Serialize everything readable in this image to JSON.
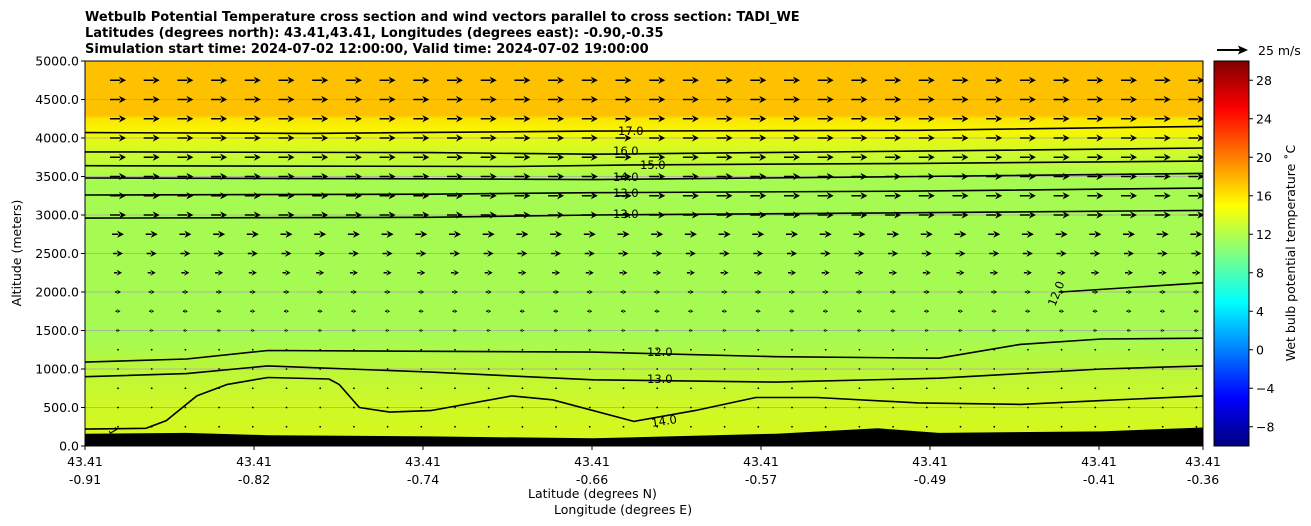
{
  "chart_data": {
    "type": "contour",
    "title": [
      "Wetbulb Potential Temperature cross section and wind vectors parallel to cross section: TADI_WE",
      "Latitudes (degrees north): 43.41,43.41, Longitudes (degrees east): -0.90,-0.35",
      "Simulation start time: 2024-07-02 12:00:00, Valid time: 2024-07-02 19:00:00"
    ],
    "xlabel_lat": "Latitude (degrees N)",
    "xlabel_lon": "Longitude (degrees E)",
    "ylabel": "Altitude (meters)",
    "ylim": [
      0,
      5000
    ],
    "yticks": [
      "0.0",
      "500.0",
      "1000.0",
      "1500.0",
      "2000.0",
      "2500.0",
      "3000.0",
      "3500.0",
      "4000.0",
      "4500.0",
      "5000.0"
    ],
    "xticks": [
      {
        "lat": "43.41",
        "lon": "-0.91"
      },
      {
        "lat": "43.41",
        "lon": "-0.82"
      },
      {
        "lat": "43.41",
        "lon": "-0.74"
      },
      {
        "lat": "43.41",
        "lon": "-0.66"
      },
      {
        "lat": "43.41",
        "lon": "-0.57"
      },
      {
        "lat": "43.41",
        "lon": "-0.49"
      },
      {
        "lat": "43.41",
        "lon": "-0.41"
      },
      {
        "lat": "43.41",
        "lon": "-0.36"
      }
    ],
    "colorbar": {
      "label": "Wet bulb potential temperature ˚C",
      "range": [
        -10,
        30
      ],
      "ticks": [
        "−8",
        "−4",
        "0",
        "4",
        "8",
        "12",
        "16",
        "20",
        "24",
        "28"
      ]
    },
    "quiver_key": "25 m/s",
    "contour_labels": [
      "17.0",
      "16.0",
      "15.0",
      "14.0",
      "13.0",
      "13.0",
      "12.0",
      "12.0",
      "13.0",
      "14.0",
      "1"
    ],
    "terrain_heights_m": [
      [
        -0.91,
        160
      ],
      [
        -0.86,
        170
      ],
      [
        -0.82,
        140
      ],
      [
        -0.74,
        125
      ],
      [
        -0.66,
        100
      ],
      [
        -0.57,
        160
      ],
      [
        -0.52,
        230
      ],
      [
        -0.49,
        170
      ],
      [
        -0.41,
        190
      ],
      [
        -0.36,
        240
      ]
    ],
    "contours": [
      {
        "level": 17.0,
        "points": [
          [
            -0.91,
            4070
          ],
          [
            -0.8,
            4060
          ],
          [
            -0.66,
            4090
          ],
          [
            -0.5,
            4100
          ],
          [
            -0.36,
            4150
          ]
        ]
      },
      {
        "level": 16.0,
        "points": [
          [
            -0.91,
            3820
          ],
          [
            -0.74,
            3810
          ],
          [
            -0.66,
            3790
          ],
          [
            -0.5,
            3830
          ],
          [
            -0.36,
            3870
          ]
        ]
      },
      {
        "level": 15.0,
        "points": [
          [
            -0.91,
            3640
          ],
          [
            -0.7,
            3630
          ],
          [
            -0.64,
            3650
          ],
          [
            -0.5,
            3670
          ],
          [
            -0.36,
            3700
          ]
        ]
      },
      {
        "level": 14.0,
        "points": [
          [
            -0.91,
            3480
          ],
          [
            -0.74,
            3470
          ],
          [
            -0.66,
            3460
          ],
          [
            -0.5,
            3500
          ],
          [
            -0.36,
            3540
          ]
        ]
      },
      {
        "level": 13.0,
        "points": [
          [
            -0.91,
            3260
          ],
          [
            -0.74,
            3270
          ],
          [
            -0.66,
            3290
          ],
          [
            -0.5,
            3310
          ],
          [
            -0.36,
            3350
          ]
        ]
      },
      {
        "level": 12.0,
        "points": [
          [
            -0.91,
            2960
          ],
          [
            -0.74,
            2970
          ],
          [
            -0.66,
            3000
          ],
          [
            -0.5,
            3030
          ],
          [
            -0.36,
            3060
          ]
        ]
      },
      {
        "level": 12.0,
        "points": [
          [
            -0.91,
            1090
          ],
          [
            -0.86,
            1130
          ],
          [
            -0.82,
            1240
          ],
          [
            -0.74,
            1230
          ],
          [
            -0.66,
            1220
          ],
          [
            -0.57,
            1160
          ],
          [
            -0.49,
            1140
          ],
          [
            -0.45,
            1320
          ],
          [
            -0.41,
            1390
          ],
          [
            -0.36,
            1400
          ]
        ]
      },
      {
        "level": 13.0,
        "points": [
          [
            -0.91,
            900
          ],
          [
            -0.86,
            940
          ],
          [
            -0.82,
            1040
          ],
          [
            -0.74,
            960
          ],
          [
            -0.66,
            860
          ],
          [
            -0.57,
            830
          ],
          [
            -0.49,
            880
          ],
          [
            -0.41,
            1000
          ],
          [
            -0.36,
            1040
          ]
        ]
      },
      {
        "level": 14.0,
        "points": [
          [
            -0.91,
            220
          ],
          [
            -0.88,
            230
          ],
          [
            -0.87,
            330
          ],
          [
            -0.855,
            650
          ],
          [
            -0.84,
            800
          ],
          [
            -0.82,
            890
          ],
          [
            -0.79,
            870
          ],
          [
            -0.785,
            800
          ],
          [
            -0.775,
            500
          ],
          [
            -0.76,
            440
          ],
          [
            -0.74,
            460
          ],
          [
            -0.7,
            650
          ],
          [
            -0.68,
            600
          ],
          [
            -0.64,
            320
          ],
          [
            -0.61,
            460
          ],
          [
            -0.58,
            630
          ],
          [
            -0.55,
            630
          ],
          [
            -0.5,
            560
          ],
          [
            -0.45,
            540
          ],
          [
            -0.41,
            590
          ],
          [
            -0.36,
            650
          ]
        ]
      },
      {
        "level": 12.0,
        "points": [
          [
            -0.43,
            2000
          ],
          [
            -0.36,
            2120
          ]
        ]
      }
    ]
  }
}
